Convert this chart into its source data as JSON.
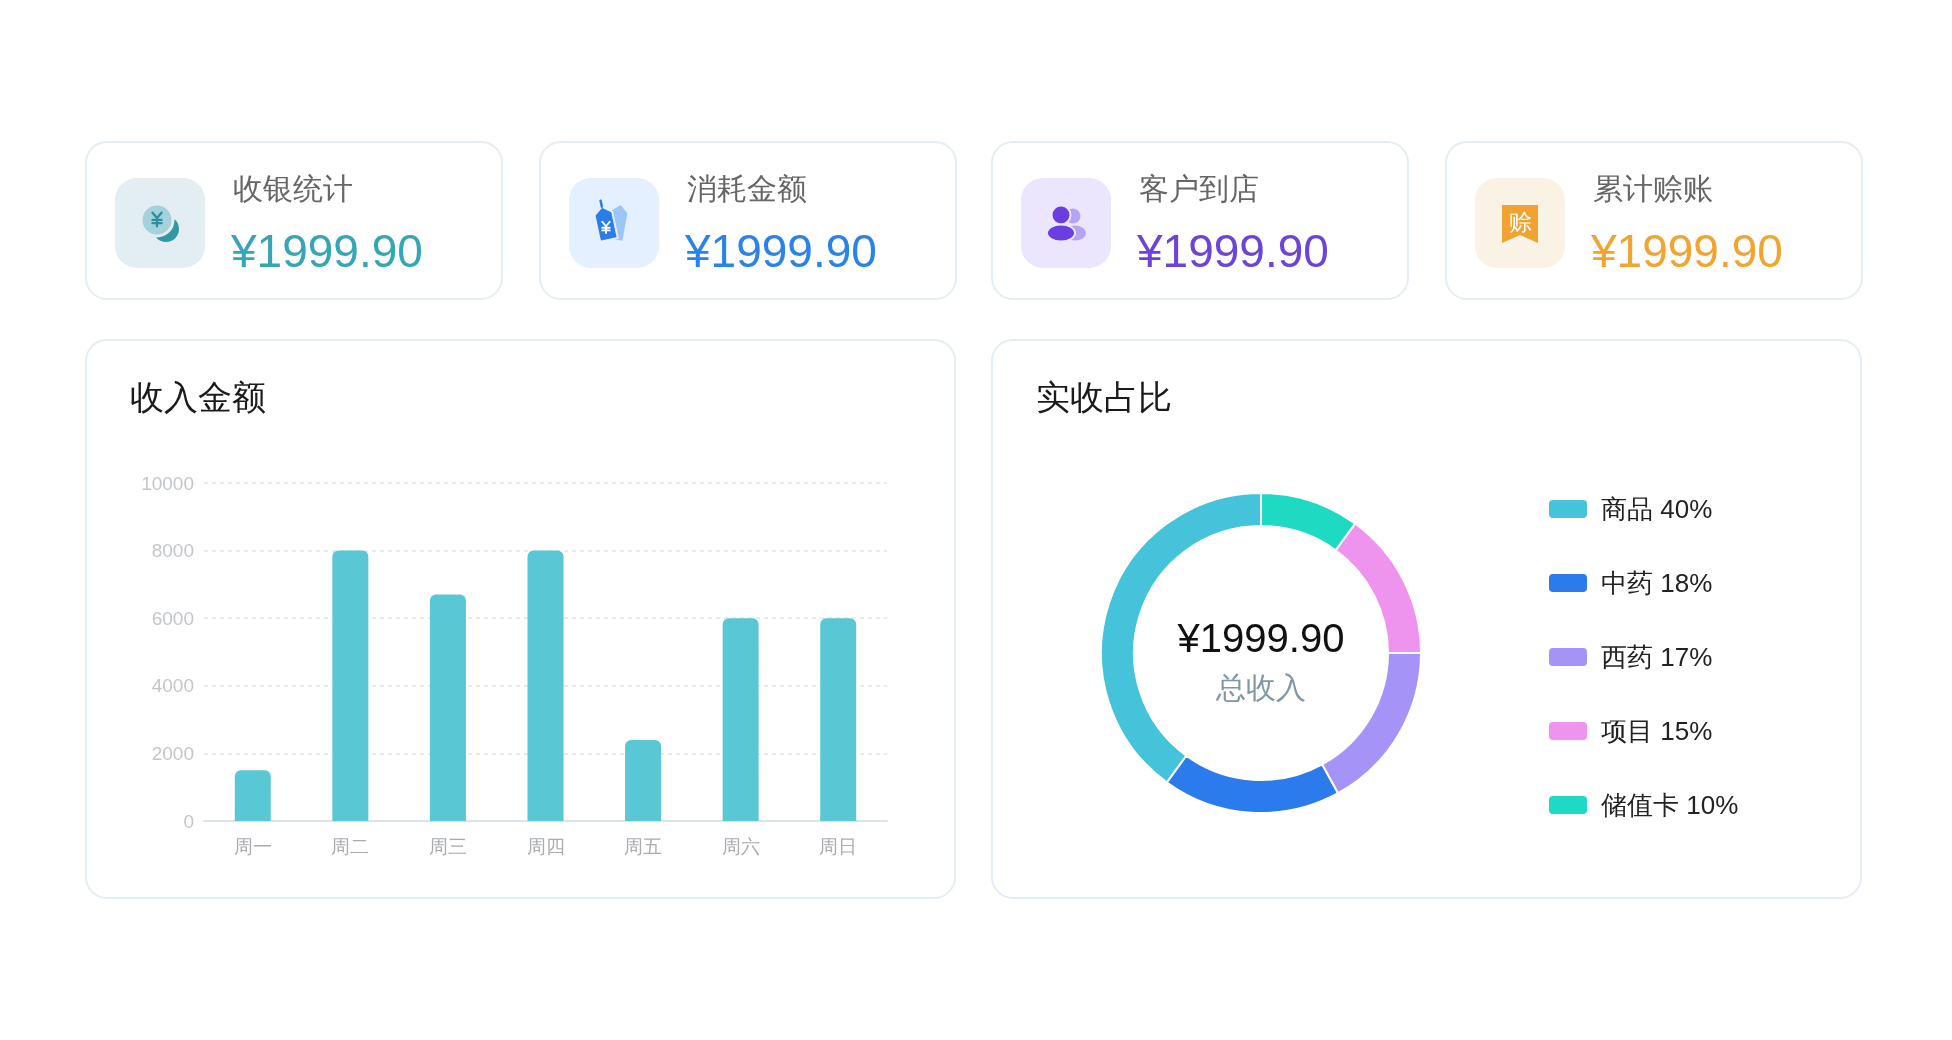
{
  "chart_data": [
    {
      "type": "other",
      "title": "收银统计",
      "annotations": [
        "¥1999.90"
      ],
      "color": "#34a6b6"
    },
    {
      "type": "other",
      "title": "消耗金额",
      "annotations": [
        "¥1999.90"
      ],
      "color": "#2a83e8"
    },
    {
      "type": "other",
      "title": "客户到店",
      "annotations": [
        "¥1999.90"
      ],
      "color": "#6d44d9"
    },
    {
      "type": "other",
      "title": "累计赊账",
      "annotations": [
        "¥1999.90",
        "赊"
      ],
      "color": "#f2a431"
    },
    {
      "type": "bar",
      "title": "收入金额",
      "categories": [
        "周一",
        "周二",
        "周三",
        "周四",
        "周五",
        "周六",
        "周日"
      ],
      "values": [
        1500,
        8000,
        6700,
        8000,
        2400,
        6000,
        6000
      ],
      "color": "#59c8d4",
      "ylim": [
        0,
        10000
      ],
      "yticks": [
        0,
        2000,
        4000,
        6000,
        8000,
        10000
      ],
      "grid": "y"
    },
    {
      "type": "donut",
      "title": "实收占比",
      "categories": [
        "商品",
        "中药",
        "西药",
        "项目",
        "储值卡"
      ],
      "values": [
        40,
        18,
        17,
        15,
        10
      ],
      "value_labels": [
        "40%",
        "18%",
        "17%",
        "15%",
        "10%"
      ],
      "colors": [
        "#45c3da",
        "#2b7bec",
        "#a593f7",
        "#ef94ee",
        "#1fdac2"
      ],
      "annotations": [
        "¥1999.90",
        "总收入"
      ],
      "legend": "right"
    }
  ]
}
